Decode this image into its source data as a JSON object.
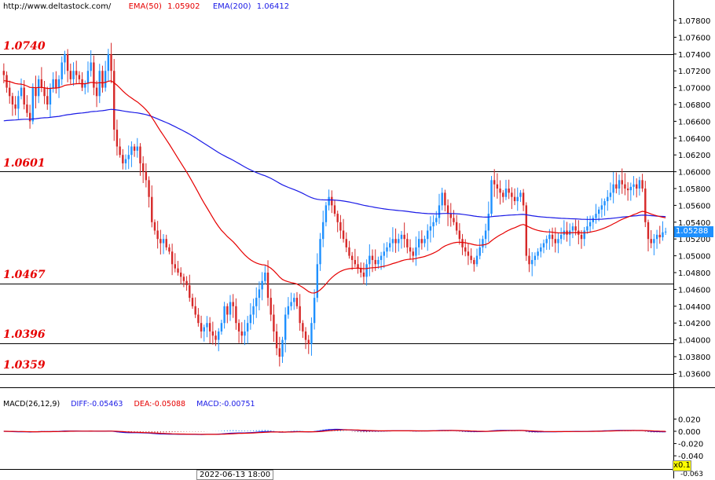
{
  "header": {
    "site": "http://www.deltastock.com/",
    "ema50_label": "EMA(50)",
    "ema50_value": "1.05902",
    "ema200_label": "EMA(200)",
    "ema200_value": "1.06412"
  },
  "colors": {
    "bull": "#1e90ff",
    "bear": "#d62828",
    "ema50": "#e60000",
    "ema200": "#1a1ae6",
    "level_text": "#e60000",
    "macd_pos": "#1e90ff",
    "macd_neg": "#b22222"
  },
  "levels": [
    {
      "label": "1.0740",
      "value": 1.074
    },
    {
      "label": "1.0601",
      "value": 1.0601
    },
    {
      "label": "1.0467",
      "value": 1.0467
    },
    {
      "label": "1.0396",
      "value": 1.0396
    },
    {
      "label": "1.0359",
      "value": 1.0359
    }
  ],
  "price_axis": {
    "ticks": [
      "1.07800",
      "1.07600",
      "1.07400",
      "1.07200",
      "1.07000",
      "1.06800",
      "1.06600",
      "1.06400",
      "1.06200",
      "1.06000",
      "1.05800",
      "1.05600",
      "1.05400",
      "1.05200",
      "1.05000",
      "1.04800",
      "1.04600",
      "1.04400",
      "1.04200",
      "1.04000",
      "1.03800",
      "1.03600"
    ],
    "current": "1.05288"
  },
  "macd": {
    "title": "MACD(26,12,9)",
    "diff_label": "DIFF:-0.05463",
    "dea_label": "DEA:-0.05088",
    "macd_label": "MACD:-0.00751",
    "ticks": [
      "0.020",
      "0.000",
      "-0.020",
      "-0.040"
    ],
    "bottom_value": "-0.063"
  },
  "footer": {
    "time_label": "2022-06-13 18:00",
    "zoom": "x0.1"
  },
  "chart_data": {
    "type": "candlestick",
    "instrument_note": "EMA(50) 1.05902, EMA(200) 1.06412",
    "ylim": [
      1.0355,
      1.0795
    ],
    "levels": [
      1.074,
      1.0601,
      1.0467,
      1.0396,
      1.0359
    ],
    "closes": [
      1.0715,
      1.07,
      1.069,
      1.068,
      1.0675,
      1.069,
      1.07,
      1.068,
      1.067,
      1.066,
      1.07,
      1.069,
      1.071,
      1.07,
      1.069,
      1.068,
      1.07,
      1.071,
      1.07,
      1.071,
      1.073,
      1.074,
      1.072,
      1.071,
      1.072,
      1.0715,
      1.071,
      1.07,
      1.0705,
      1.072,
      1.073,
      1.07,
      1.069,
      1.072,
      1.07,
      1.072,
      1.074,
      1.072,
      1.065,
      1.063,
      1.062,
      1.061,
      1.0615,
      1.062,
      1.063,
      1.0625,
      1.063,
      1.061,
      1.06,
      1.059,
      1.057,
      1.054,
      1.053,
      1.052,
      1.0515,
      1.052,
      1.051,
      1.0505,
      1.049,
      1.0485,
      1.048,
      1.0475,
      1.047,
      1.0465,
      1.045,
      1.044,
      1.043,
      1.042,
      1.041,
      1.0415,
      1.042,
      1.041,
      1.0405,
      1.04,
      1.041,
      1.042,
      1.044,
      1.043,
      1.0445,
      1.044,
      1.042,
      1.041,
      1.0405,
      1.041,
      1.042,
      1.043,
      1.044,
      1.045,
      1.046,
      1.047,
      1.048,
      1.045,
      1.043,
      1.041,
      1.039,
      1.038,
      1.04,
      1.043,
      1.044,
      1.0445,
      1.045,
      1.044,
      1.042,
      1.041,
      1.04,
      1.0395,
      1.042,
      1.045,
      1.049,
      1.052,
      1.054,
      1.056,
      1.057,
      1.056,
      1.055,
      1.054,
      1.053,
      1.052,
      1.051,
      1.05,
      1.0495,
      1.049,
      1.0485,
      1.048,
      1.0475,
      1.049,
      1.05,
      1.0495,
      1.049,
      1.0495,
      1.05,
      1.0505,
      1.051,
      1.0515,
      1.052,
      1.0515,
      1.052,
      1.0525,
      1.052,
      1.051,
      1.0505,
      1.05,
      1.051,
      1.052,
      1.0515,
      1.052,
      1.053,
      1.0535,
      1.054,
      1.0545,
      1.056,
      1.0575,
      1.056,
      1.055,
      1.0545,
      1.054,
      1.053,
      1.052,
      1.051,
      1.0505,
      1.05,
      1.0495,
      1.049,
      1.05,
      1.051,
      1.052,
      1.053,
      1.055,
      1.059,
      1.0585,
      1.058,
      1.0575,
      1.057,
      1.058,
      1.0575,
      1.057,
      1.0565,
      1.057,
      1.0575,
      1.056,
      1.05,
      1.049,
      1.0495,
      1.05,
      1.0505,
      1.051,
      1.0515,
      1.052,
      1.0525,
      1.052,
      1.0515,
      1.052,
      1.0525,
      1.053,
      1.0525,
      1.053,
      1.0535,
      1.053,
      1.0525,
      1.052,
      1.053,
      1.0535,
      1.054,
      1.0545,
      1.055,
      1.0555,
      1.056,
      1.0565,
      1.057,
      1.0575,
      1.0585,
      1.058,
      1.059,
      1.0585,
      1.058,
      1.0578,
      1.0582,
      1.0585,
      1.058,
      1.059,
      1.058,
      1.054,
      1.052,
      1.0515,
      1.052,
      1.0525,
      1.0522,
      1.0528,
      1.05288
    ]
  }
}
